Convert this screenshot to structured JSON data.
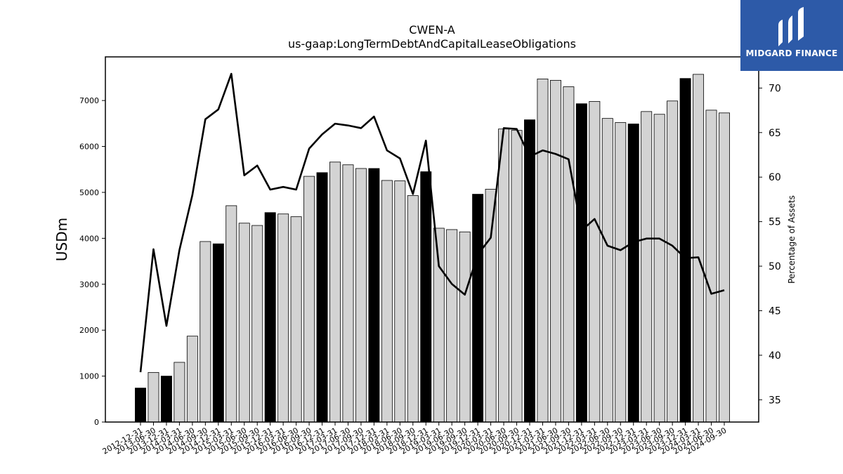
{
  "chart_data": {
    "type": "bar",
    "title": "CWEN-A",
    "subtitle": "us-gaap:LongTermDebtAndCapitalLeaseObligations",
    "ylabel": "USDm",
    "y2label": "Percentage of Assets",
    "ylim": [
      0,
      7950
    ],
    "y2lim": [
      32.5,
      73.5
    ],
    "yticks": [
      0,
      1000,
      2000,
      3000,
      4000,
      5000,
      6000,
      7000
    ],
    "y2ticks": [
      35,
      40,
      45,
      50,
      55,
      60,
      65,
      70
    ],
    "categories": [
      "2012-12-31",
      "2013-06-30",
      "2013-12-31",
      "2014-03-31",
      "2014-06-30",
      "2014-09-30",
      "2014-12-31",
      "2015-03-31",
      "2015-06-30",
      "2015-09-30",
      "2015-12-31",
      "2016-03-31",
      "2016-06-30",
      "2016-09-30",
      "2016-12-31",
      "2017-03-31",
      "2017-06-30",
      "2017-09-30",
      "2017-12-31",
      "2018-03-31",
      "2018-06-30",
      "2018-09-30",
      "2018-12-31",
      "2019-03-31",
      "2019-06-30",
      "2019-09-30",
      "2019-12-31",
      "2020-03-31",
      "2020-06-30",
      "2020-09-30",
      "2020-12-31",
      "2021-03-31",
      "2021-06-30",
      "2021-09-30",
      "2021-12-31",
      "2022-03-31",
      "2022-06-30",
      "2022-09-30",
      "2022-12-31",
      "2023-03-31",
      "2023-06-30",
      "2023-09-30",
      "2023-12-31",
      "2024-03-31",
      "2024-06-30",
      "2024-09-30"
    ],
    "series": [
      {
        "name": "USDm",
        "type": "bar",
        "values": [
          740,
          1080,
          1000,
          1300,
          1870,
          3930,
          3880,
          4710,
          4330,
          4280,
          4560,
          4530,
          4470,
          5350,
          5430,
          5660,
          5600,
          5520,
          5520,
          5260,
          5250,
          4930,
          5450,
          4220,
          4190,
          4140,
          4960,
          5070,
          6380,
          6350,
          6580,
          7470,
          7440,
          7300,
          6930,
          6980,
          6610,
          6520,
          6490,
          6760,
          6700,
          6990,
          7480,
          7570,
          6790,
          6730
        ],
        "year_end": [
          true,
          false,
          true,
          false,
          false,
          false,
          true,
          false,
          false,
          false,
          true,
          false,
          false,
          false,
          true,
          false,
          false,
          false,
          true,
          false,
          false,
          false,
          true,
          false,
          false,
          false,
          true,
          false,
          false,
          false,
          true,
          false,
          false,
          false,
          true,
          false,
          false,
          false,
          true,
          false,
          false,
          false,
          true,
          false,
          false,
          false
        ]
      },
      {
        "name": "Percentage of Assets",
        "type": "line",
        "axis": "right",
        "values": [
          38.1,
          51.9,
          43.3,
          51.8,
          58.0,
          66.5,
          67.6,
          71.6,
          60.2,
          61.3,
          58.6,
          58.9,
          58.6,
          63.2,
          64.8,
          66.0,
          65.8,
          65.5,
          66.8,
          63.0,
          62.1,
          58.1,
          64.1,
          50.0,
          48.0,
          46.8,
          51.3,
          53.2,
          65.5,
          65.4,
          62.3,
          63.0,
          62.6,
          62.0,
          54.0,
          55.3,
          52.3,
          51.8,
          52.7,
          53.1,
          53.1,
          52.3,
          50.9,
          51.0,
          46.9,
          47.3
        ]
      }
    ],
    "colors": {
      "bar": "#d3d3d3",
      "bar_year_end": "#000000",
      "line": "#000000"
    }
  },
  "logo": {
    "text": "MIDGARD FINANCE",
    "color": "#2d5aa8"
  }
}
